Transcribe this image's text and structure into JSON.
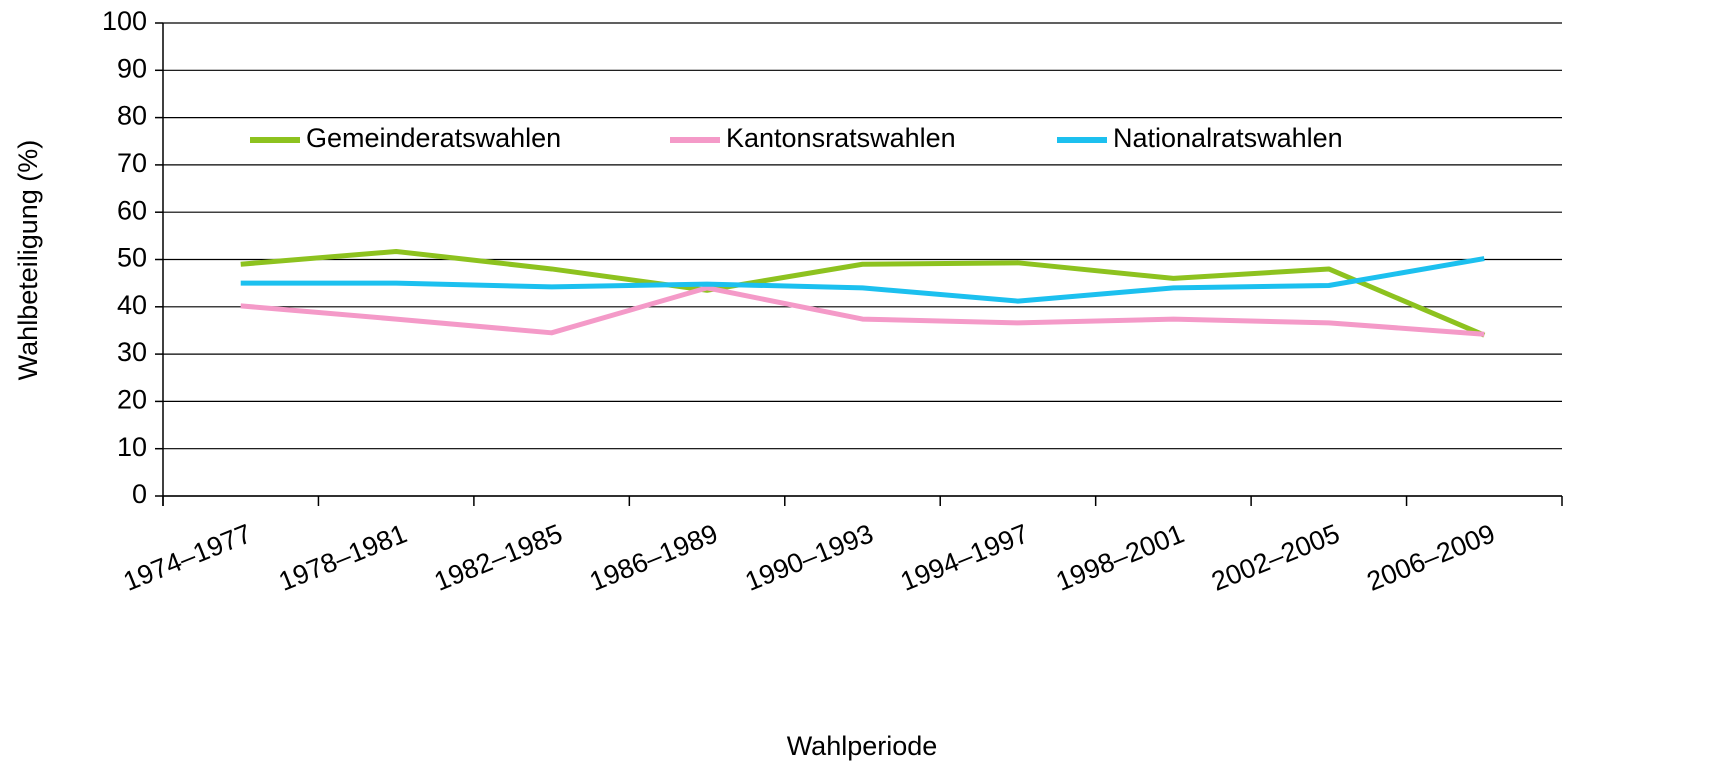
{
  "chart_data": {
    "type": "line",
    "categories": [
      "1974–1977",
      "1978–1981",
      "1982–1985",
      "1986–1989",
      "1990–1993",
      "1994–1997",
      "1998–2001",
      "2002–2005",
      "2006–2009"
    ],
    "series": [
      {
        "name": "Gemeinderatswahlen",
        "color": "#8dc21f",
        "values": [
          49,
          51.7,
          48,
          43.5,
          49,
          49.3,
          46,
          48,
          34
        ]
      },
      {
        "name": "Kantonsratswahlen",
        "color": "#f49ac8",
        "values": [
          40.2,
          37.4,
          34.5,
          44,
          37.4,
          36.6,
          37.4,
          36.6,
          34.2
        ]
      },
      {
        "name": "Nationalratswahlen",
        "color": "#1cc0ef",
        "values": [
          45,
          45,
          44.2,
          44.8,
          44,
          41.2,
          44,
          44.5,
          50.2
        ]
      }
    ],
    "xlabel": "Wahlperiode",
    "ylabel": "Wahlbeteiligung  (%)",
    "ylim": [
      0,
      100
    ],
    "yticks": [
      0,
      10,
      20,
      30,
      40,
      50,
      60,
      70,
      80,
      90,
      100
    ],
    "grid": true,
    "legend": "top"
  }
}
